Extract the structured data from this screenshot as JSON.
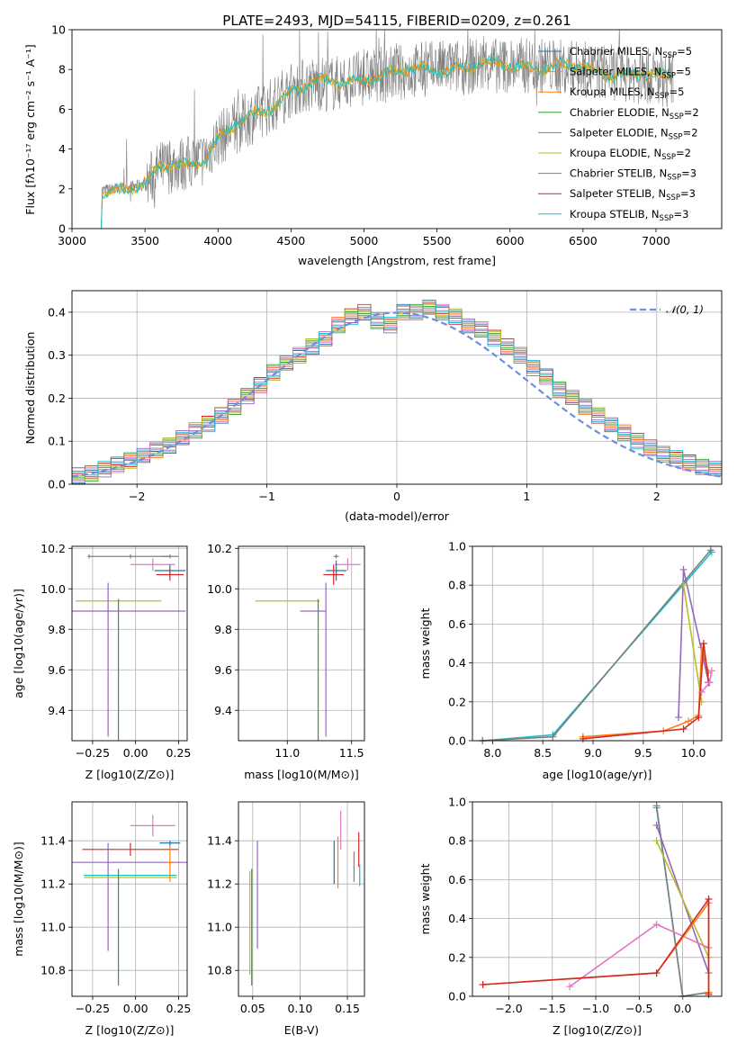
{
  "chart_data": [
    {
      "type": "line",
      "title": "PLATE=2493, MJD=54115, FIBERID=0209, z=0.261",
      "xlabel": "wavelength [Angstrom, rest frame]",
      "ylabel": "Flux [fλ10⁻¹⁷ erg cm⁻² s⁻¹ A⁻¹]",
      "xlim": [
        3000,
        7450
      ],
      "ylim": [
        0,
        10
      ],
      "xticks": [
        3000,
        3500,
        4000,
        4500,
        5000,
        5500,
        6000,
        6500,
        7000
      ],
      "yticks": [
        0,
        2,
        4,
        6,
        8,
        10
      ],
      "legend_position": "right",
      "legend": [
        {
          "name": "Chabrier MILES, N_SSP=5",
          "color": "#1f77b4"
        },
        {
          "name": "Salpeter MILES, N_SSP=5",
          "color": "#ff7f0e"
        },
        {
          "name": "Kroupa MILES, N_SSP=5",
          "color": "#ff7f0e"
        },
        {
          "name": "Chabrier ELODIE, N_SSP=2",
          "color": "#2ca02c"
        },
        {
          "name": "Salpeter ELODIE, N_SSP=2",
          "color": "#9467bd"
        },
        {
          "name": "Kroupa ELODIE, N_SSP=2",
          "color": "#bcbd22"
        },
        {
          "name": "Chabrier STELIB, N_SSP=3",
          "color": "#7f7f7f"
        },
        {
          "name": "Salpeter STELIB, N_SSP=3",
          "color": "#d62728"
        },
        {
          "name": "Kroupa STELIB, N_SSP=3",
          "color": "#17becf"
        }
      ],
      "continuum": {
        "x": [
          3200,
          3300,
          3400,
          3500,
          3600,
          3700,
          3800,
          3900,
          4000,
          4100,
          4200,
          4300,
          4400,
          4500,
          4600,
          4700,
          4800,
          4900,
          5000,
          5100,
          5200,
          5400,
          5600,
          5800,
          6000,
          6200,
          6400,
          6600,
          6800,
          7000,
          7100
        ],
        "y": [
          1.9,
          2.0,
          2.1,
          2.2,
          3.0,
          3.2,
          3.3,
          3.5,
          4.5,
          5.0,
          5.5,
          5.9,
          6.4,
          7.0,
          7.2,
          7.3,
          7.3,
          7.4,
          7.6,
          7.7,
          7.8,
          8.0,
          8.1,
          8.2,
          8.2,
          8.2,
          8.1,
          7.9,
          7.8,
          7.6,
          7.5
        ]
      }
    },
    {
      "type": "bar",
      "xlabel": "(data-model)/error",
      "ylabel": "Normed distribution",
      "xlim": [
        -2.5,
        2.5
      ],
      "ylim": [
        0,
        0.45
      ],
      "xticks": [
        -2,
        -1,
        0,
        1,
        2
      ],
      "yticks": [
        0.0,
        0.1,
        0.2,
        0.3,
        0.4
      ],
      "legend": [
        {
          "name": "𝒩(0, 1)",
          "color": "#6a8fdd"
        }
      ],
      "bins_center": [
        -2.45,
        -2.35,
        -2.25,
        -2.15,
        -2.05,
        -1.95,
        -1.85,
        -1.75,
        -1.65,
        -1.55,
        -1.45,
        -1.35,
        -1.25,
        -1.15,
        -1.05,
        -0.95,
        -0.85,
        -0.75,
        -0.65,
        -0.55,
        -0.45,
        -0.35,
        -0.25,
        -0.15,
        -0.05,
        0.05,
        0.15,
        0.25,
        0.35,
        0.45,
        0.55,
        0.65,
        0.75,
        0.85,
        0.95,
        1.05,
        1.15,
        1.25,
        1.35,
        1.45,
        1.55,
        1.65,
        1.75,
        1.85,
        1.95,
        2.05,
        2.15,
        2.25,
        2.35,
        2.45
      ],
      "values": [
        0.02,
        0.025,
        0.035,
        0.045,
        0.055,
        0.065,
        0.08,
        0.09,
        0.11,
        0.125,
        0.14,
        0.16,
        0.18,
        0.205,
        0.23,
        0.26,
        0.28,
        0.3,
        0.32,
        0.34,
        0.37,
        0.39,
        0.4,
        0.38,
        0.37,
        0.4,
        0.4,
        0.41,
        0.4,
        0.39,
        0.37,
        0.36,
        0.34,
        0.32,
        0.3,
        0.27,
        0.25,
        0.22,
        0.2,
        0.18,
        0.16,
        0.14,
        0.12,
        0.1,
        0.085,
        0.07,
        0.06,
        0.05,
        0.04,
        0.035
      ]
    },
    {
      "type": "scatter",
      "xlabel": "Z [log10(Z/Z⊙)]",
      "ylabel": "age [log10(age/yr)]",
      "xlim": [
        -0.37,
        0.3
      ],
      "ylim": [
        9.25,
        10.21
      ],
      "xticks": [
        -0.25,
        0.0,
        0.25
      ],
      "yticks": [
        9.4,
        9.6,
        9.8,
        10.0,
        10.2
      ],
      "points": [
        {
          "x": -0.27,
          "y": 10.16,
          "xerr": 0.01,
          "yerr": 0.01,
          "color": "#7f7f7f"
        },
        {
          "x": -0.03,
          "y": 10.16,
          "xerr": 0.23,
          "yerr": 0.01,
          "color": "#7f7f7f"
        },
        {
          "x": 0.2,
          "y": 10.16,
          "xerr": 0.05,
          "yerr": 0.01,
          "color": "#7f7f7f"
        },
        {
          "x": 0.1,
          "y": 10.12,
          "xerr": 0.13,
          "yerr": 0.03,
          "color": "#e377c2"
        },
        {
          "x": 0.2,
          "y": 10.09,
          "xerr": 0.09,
          "yerr": 0.03,
          "color": "#1f77b4"
        },
        {
          "x": 0.2,
          "y": 10.07,
          "xerr": 0.08,
          "yerr": 0.03,
          "color": "#d62728"
        },
        {
          "x": -0.1,
          "y": 9.94,
          "xerr": 0.25,
          "yerr": 0.0,
          "color": "#bcbd22"
        },
        {
          "x": -0.1,
          "y": 9.6,
          "xerr": 0.0,
          "yerr": 0.35,
          "color": "#2ca02c"
        },
        {
          "x": -0.16,
          "y": 9.89,
          "xerr": 0.45,
          "yerr": 0.0,
          "color": "#9467bd"
        },
        {
          "x": -0.16,
          "y": 9.65,
          "xerr": 0.0,
          "yerr": 0.38,
          "color": "#9467bd"
        }
      ]
    },
    {
      "type": "scatter",
      "xlabel": "mass [log10(M/M⊙)]",
      "ylabel": "",
      "xlim": [
        10.62,
        11.6
      ],
      "ylim": [
        9.25,
        10.21
      ],
      "xticks": [
        11.0,
        11.5
      ],
      "yticks": [
        9.4,
        9.6,
        9.8,
        10.0,
        10.2
      ],
      "points": [
        {
          "x": 11.38,
          "y": 10.16,
          "xerr": 0.02,
          "yerr": 0.01,
          "color": "#7f7f7f"
        },
        {
          "x": 11.47,
          "y": 10.12,
          "xerr": 0.1,
          "yerr": 0.03,
          "color": "#e377c2"
        },
        {
          "x": 11.38,
          "y": 10.09,
          "xerr": 0.08,
          "yerr": 0.05,
          "color": "#1f77b4"
        },
        {
          "x": 11.36,
          "y": 10.07,
          "xerr": 0.08,
          "yerr": 0.05,
          "color": "#d62728"
        },
        {
          "x": 11.0,
          "y": 9.94,
          "xerr": 0.25,
          "yerr": 0.0,
          "color": "#bcbd22"
        },
        {
          "x": 11.24,
          "y": 9.6,
          "xerr": 0.0,
          "yerr": 0.35,
          "color": "#2ca02c"
        },
        {
          "x": 11.2,
          "y": 9.89,
          "xerr": 0.1,
          "yerr": 0.0,
          "color": "#9467bd"
        },
        {
          "x": 11.3,
          "y": 9.65,
          "xerr": 0.0,
          "yerr": 0.38,
          "color": "#9467bd"
        }
      ]
    },
    {
      "type": "line",
      "xlabel": "age [log10(age/yr)]",
      "ylabel": "mass weight",
      "xlim": [
        7.8,
        10.28
      ],
      "ylim": [
        0,
        1
      ],
      "xticks": [
        8.0,
        8.5,
        9.0,
        9.5,
        10.0
      ],
      "yticks": [
        0.0,
        0.2,
        0.4,
        0.6,
        0.8,
        1.0
      ],
      "series": [
        {
          "color": "#17becf",
          "x": [
            7.9,
            8.6,
            10.18
          ],
          "y": [
            0.0,
            0.03,
            0.97
          ]
        },
        {
          "color": "#7f7f7f",
          "x": [
            7.9,
            8.6,
            10.17
          ],
          "y": [
            0.0,
            0.02,
            0.98
          ]
        },
        {
          "color": "#9467bd",
          "x": [
            9.85,
            9.9,
            10.15
          ],
          "y": [
            0.12,
            0.88,
            0.3
          ]
        },
        {
          "color": "#bcbd22",
          "x": [
            9.9,
            10.08
          ],
          "y": [
            0.8,
            0.2
          ]
        },
        {
          "color": "#ff7f0e",
          "x": [
            8.9,
            9.7,
            9.95,
            10.05,
            10.08,
            10.15
          ],
          "y": [
            0.02,
            0.05,
            0.1,
            0.13,
            0.48,
            0.35
          ]
        },
        {
          "color": "#d62728",
          "x": [
            8.9,
            9.9,
            10.05,
            10.1,
            10.15
          ],
          "y": [
            0.01,
            0.06,
            0.12,
            0.5,
            0.3
          ]
        },
        {
          "color": "#e377c2",
          "x": [
            10.08,
            10.16,
            10.18
          ],
          "y": [
            0.25,
            0.3,
            0.36
          ]
        }
      ]
    },
    {
      "type": "scatter",
      "xlabel": "Z [log10(Z/Z⊙)]",
      "ylabel": "mass [log10(M/M⊙)]",
      "xlim": [
        -0.37,
        0.3
      ],
      "ylim": [
        10.68,
        11.58
      ],
      "xticks": [
        -0.25,
        0.0,
        0.25
      ],
      "yticks": [
        10.8,
        11.0,
        11.2,
        11.4
      ],
      "points": [
        {
          "x": 0.1,
          "y": 11.47,
          "xerr": 0.13,
          "yerr": 0.05,
          "color": "#e377c2"
        },
        {
          "x": -0.03,
          "y": 11.36,
          "xerr": 0.28,
          "yerr": 0.03,
          "color": "#d62728"
        },
        {
          "x": -0.16,
          "y": 11.3,
          "xerr": 0.46,
          "yerr": 0.0,
          "color": "#9467bd"
        },
        {
          "x": -0.16,
          "y": 11.14,
          "xerr": 0.0,
          "yerr": 0.25,
          "color": "#9467bd"
        },
        {
          "x": -0.03,
          "y": 11.24,
          "xerr": 0.27,
          "yerr": 0.0,
          "color": "#17becf"
        },
        {
          "x": -0.03,
          "y": 11.23,
          "xerr": 0.27,
          "yerr": 0.0,
          "color": "#bcbd22"
        },
        {
          "x": -0.1,
          "y": 11.0,
          "xerr": 0.0,
          "yerr": 0.27,
          "color": "#2ca02c"
        },
        {
          "x": 0.2,
          "y": 11.3,
          "xerr": 0.02,
          "yerr": 0.09,
          "color": "#ff7f0e"
        },
        {
          "x": 0.2,
          "y": 11.39,
          "xerr": 0.06,
          "yerr": 0.01,
          "color": "#1f77b4"
        }
      ]
    },
    {
      "type": "scatter",
      "xlabel": "E(B-V)",
      "ylabel": "",
      "xlim": [
        0.035,
        0.168
      ],
      "ylim": [
        10.68,
        11.58
      ],
      "xticks": [
        0.05,
        0.1,
        0.15
      ],
      "yticks": [
        10.8,
        11.0,
        11.2,
        11.4
      ],
      "points": [
        {
          "x": 0.047,
          "y": 11.02,
          "yerr": 0.24,
          "color": "#bcbd22"
        },
        {
          "x": 0.049,
          "y": 11.0,
          "yerr": 0.27,
          "color": "#2ca02c"
        },
        {
          "x": 0.055,
          "y": 11.15,
          "yerr": 0.25,
          "color": "#9467bd"
        },
        {
          "x": 0.136,
          "y": 11.3,
          "yerr": 0.1,
          "color": "#1f77b4"
        },
        {
          "x": 0.14,
          "y": 11.3,
          "yerr": 0.12,
          "color": "#ff7f0e"
        },
        {
          "x": 0.143,
          "y": 11.45,
          "yerr": 0.09,
          "color": "#e377c2"
        },
        {
          "x": 0.157,
          "y": 11.28,
          "yerr": 0.07,
          "color": "#7f7f7f"
        },
        {
          "x": 0.162,
          "y": 11.36,
          "yerr": 0.08,
          "color": "#d62728"
        },
        {
          "x": 0.163,
          "y": 11.24,
          "yerr": 0.05,
          "color": "#17becf"
        }
      ]
    },
    {
      "type": "line",
      "xlabel": "Z [log10(Z/Z⊙)]",
      "ylabel": "mass weight",
      "xlim": [
        -2.42,
        0.45
      ],
      "ylim": [
        0,
        1
      ],
      "xticks": [
        -2.0,
        -1.5,
        -1.0,
        -0.5,
        0.0
      ],
      "yticks": [
        0.0,
        0.2,
        0.4,
        0.6,
        0.8,
        1.0
      ],
      "series": [
        {
          "color": "#17becf",
          "x": [
            -0.3,
            0.0,
            0.3
          ],
          "y": [
            0.97,
            0.0,
            0.02
          ]
        },
        {
          "color": "#7f7f7f",
          "x": [
            -0.3,
            0.0,
            0.3
          ],
          "y": [
            0.98,
            0.0,
            0.02
          ]
        },
        {
          "color": "#9467bd",
          "x": [
            -0.3,
            0.3
          ],
          "y": [
            0.88,
            0.12
          ]
        },
        {
          "color": "#bcbd22",
          "x": [
            -0.3,
            0.3
          ],
          "y": [
            0.8,
            0.2
          ]
        },
        {
          "color": "#e377c2",
          "x": [
            -1.3,
            -0.3,
            0.3
          ],
          "y": [
            0.05,
            0.37,
            0.25
          ]
        },
        {
          "color": "#ff7f0e",
          "x": [
            -2.3,
            -0.3,
            0.3,
            0.3
          ],
          "y": [
            0.06,
            0.12,
            0.48,
            0.02
          ]
        },
        {
          "color": "#d62728",
          "x": [
            -2.3,
            -0.3,
            0.3,
            0.3
          ],
          "y": [
            0.06,
            0.12,
            0.5,
            0.01
          ]
        }
      ]
    }
  ]
}
